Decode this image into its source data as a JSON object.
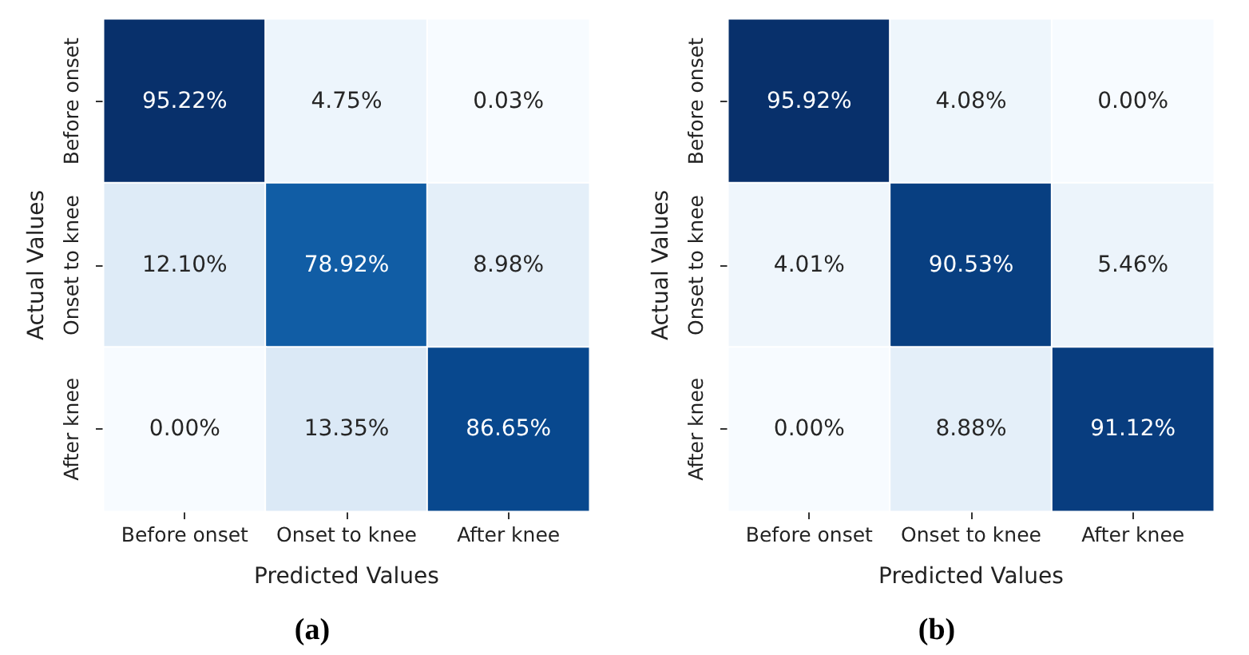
{
  "chart_data": [
    {
      "type": "heatmap",
      "title": "(a)",
      "xlabel": "Predicted Values",
      "ylabel": "Actual Values",
      "categories": [
        "Before onset",
        "Onset to knee",
        "After knee"
      ],
      "y_categories": [
        "Before onset",
        "Onset to knee",
        "After knee"
      ],
      "cells": [
        [
          95.22,
          4.75,
          0.03
        ],
        [
          12.1,
          78.92,
          8.98
        ],
        [
          0.0,
          13.35,
          86.65
        ]
      ],
      "cell_labels": [
        [
          "95.22%",
          "4.75%",
          "0.03%"
        ],
        [
          "12.10%",
          "78.92%",
          "8.98%"
        ],
        [
          "0.00%",
          "13.35%",
          "86.65%"
        ]
      ]
    },
    {
      "type": "heatmap",
      "title": "(b)",
      "xlabel": "Predicted Values",
      "ylabel": "Actual Values",
      "categories": [
        "Before onset",
        "Onset to knee",
        "After knee"
      ],
      "y_categories": [
        "Before onset",
        "Onset to knee",
        "After knee"
      ],
      "cells": [
        [
          95.92,
          4.08,
          0.0
        ],
        [
          4.01,
          90.53,
          5.46
        ],
        [
          0.0,
          8.88,
          91.12
        ]
      ],
      "cell_labels": [
        [
          "95.92%",
          "4.08%",
          "0.00%"
        ],
        [
          "4.01%",
          "90.53%",
          "5.46%"
        ],
        [
          "0.00%",
          "8.88%",
          "91.12%"
        ]
      ]
    }
  ]
}
